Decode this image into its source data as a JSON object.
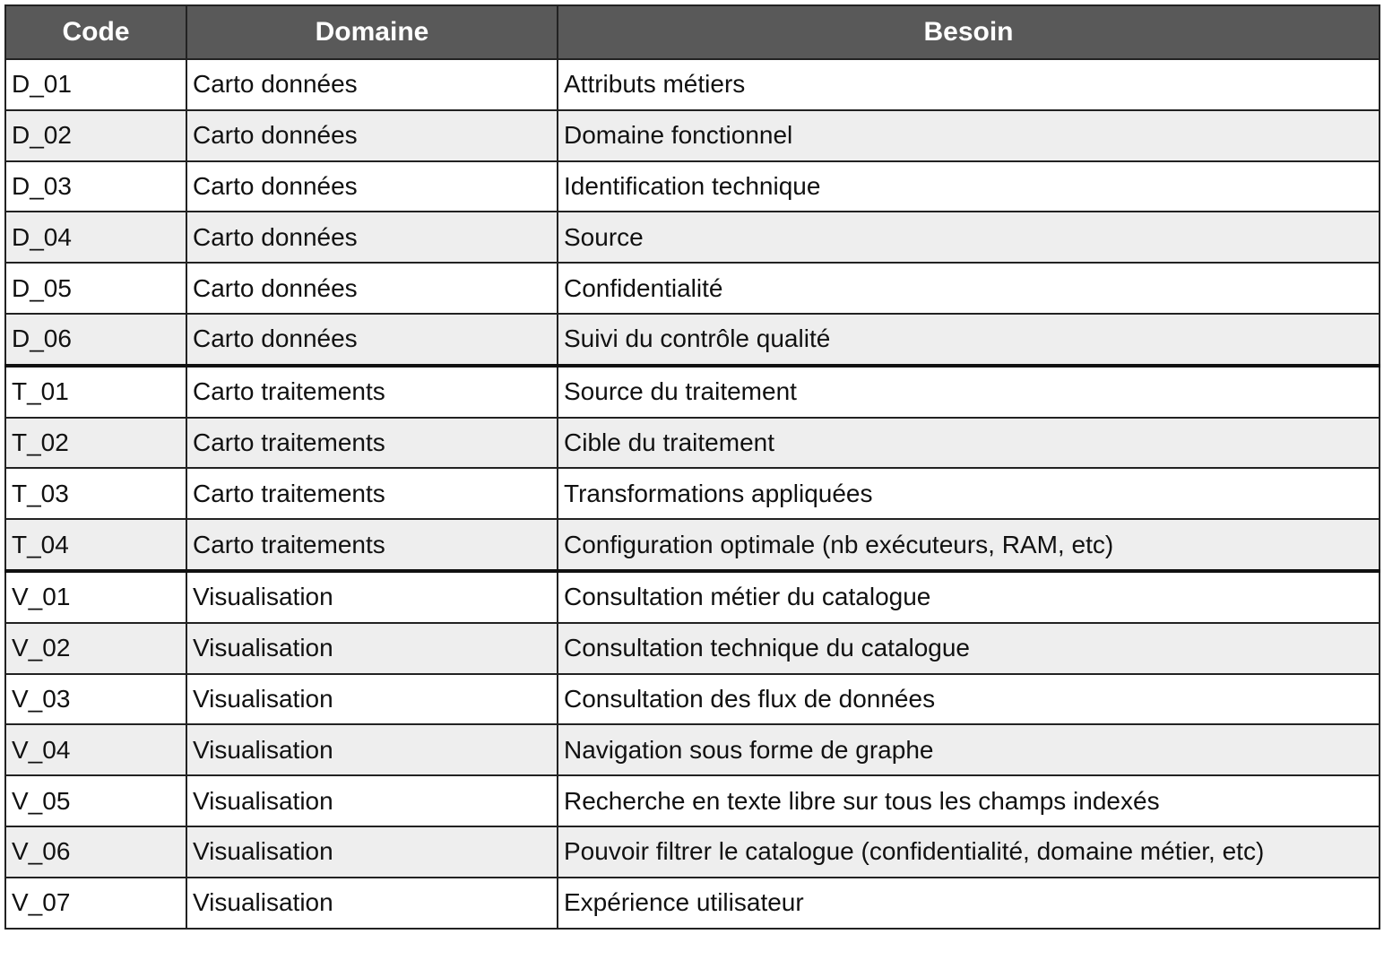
{
  "table": {
    "columns": [
      "Code",
      "Domaine",
      "Besoin"
    ],
    "rows": [
      [
        "D_01",
        "Carto données",
        "Attributs métiers"
      ],
      [
        "D_02",
        "Carto données",
        "Domaine fonctionnel"
      ],
      [
        "D_03",
        "Carto données",
        "Identification technique"
      ],
      [
        "D_04",
        "Carto données",
        "Source"
      ],
      [
        "D_05",
        "Carto données",
        "Confidentialité"
      ],
      [
        "D_06",
        "Carto données",
        "Suivi du contrôle qualité"
      ],
      [
        "T_01",
        "Carto traitements",
        "Source du traitement"
      ],
      [
        "T_02",
        "Carto traitements",
        "Cible du traitement"
      ],
      [
        "T_03",
        "Carto traitements",
        "Transformations appliquées"
      ],
      [
        "T_04",
        "Carto traitements",
        "Configuration optimale (nb exécuteurs, RAM, etc)"
      ],
      [
        "V_01",
        "Visualisation",
        "Consultation métier du catalogue"
      ],
      [
        "V_02",
        "Visualisation",
        "Consultation technique du catalogue"
      ],
      [
        "V_03",
        "Visualisation",
        "Consultation des flux de données"
      ],
      [
        "V_04",
        "Visualisation",
        "Navigation sous forme de graphe"
      ],
      [
        "V_05",
        "Visualisation",
        "Recherche en texte libre sur tous les champs indexés"
      ],
      [
        "V_06",
        "Visualisation",
        "Pouvoir filtrer le catalogue (confidentialité, domaine métier, etc)"
      ],
      [
        "V_07",
        "Visualisation",
        "Expérience utilisateur"
      ]
    ]
  }
}
